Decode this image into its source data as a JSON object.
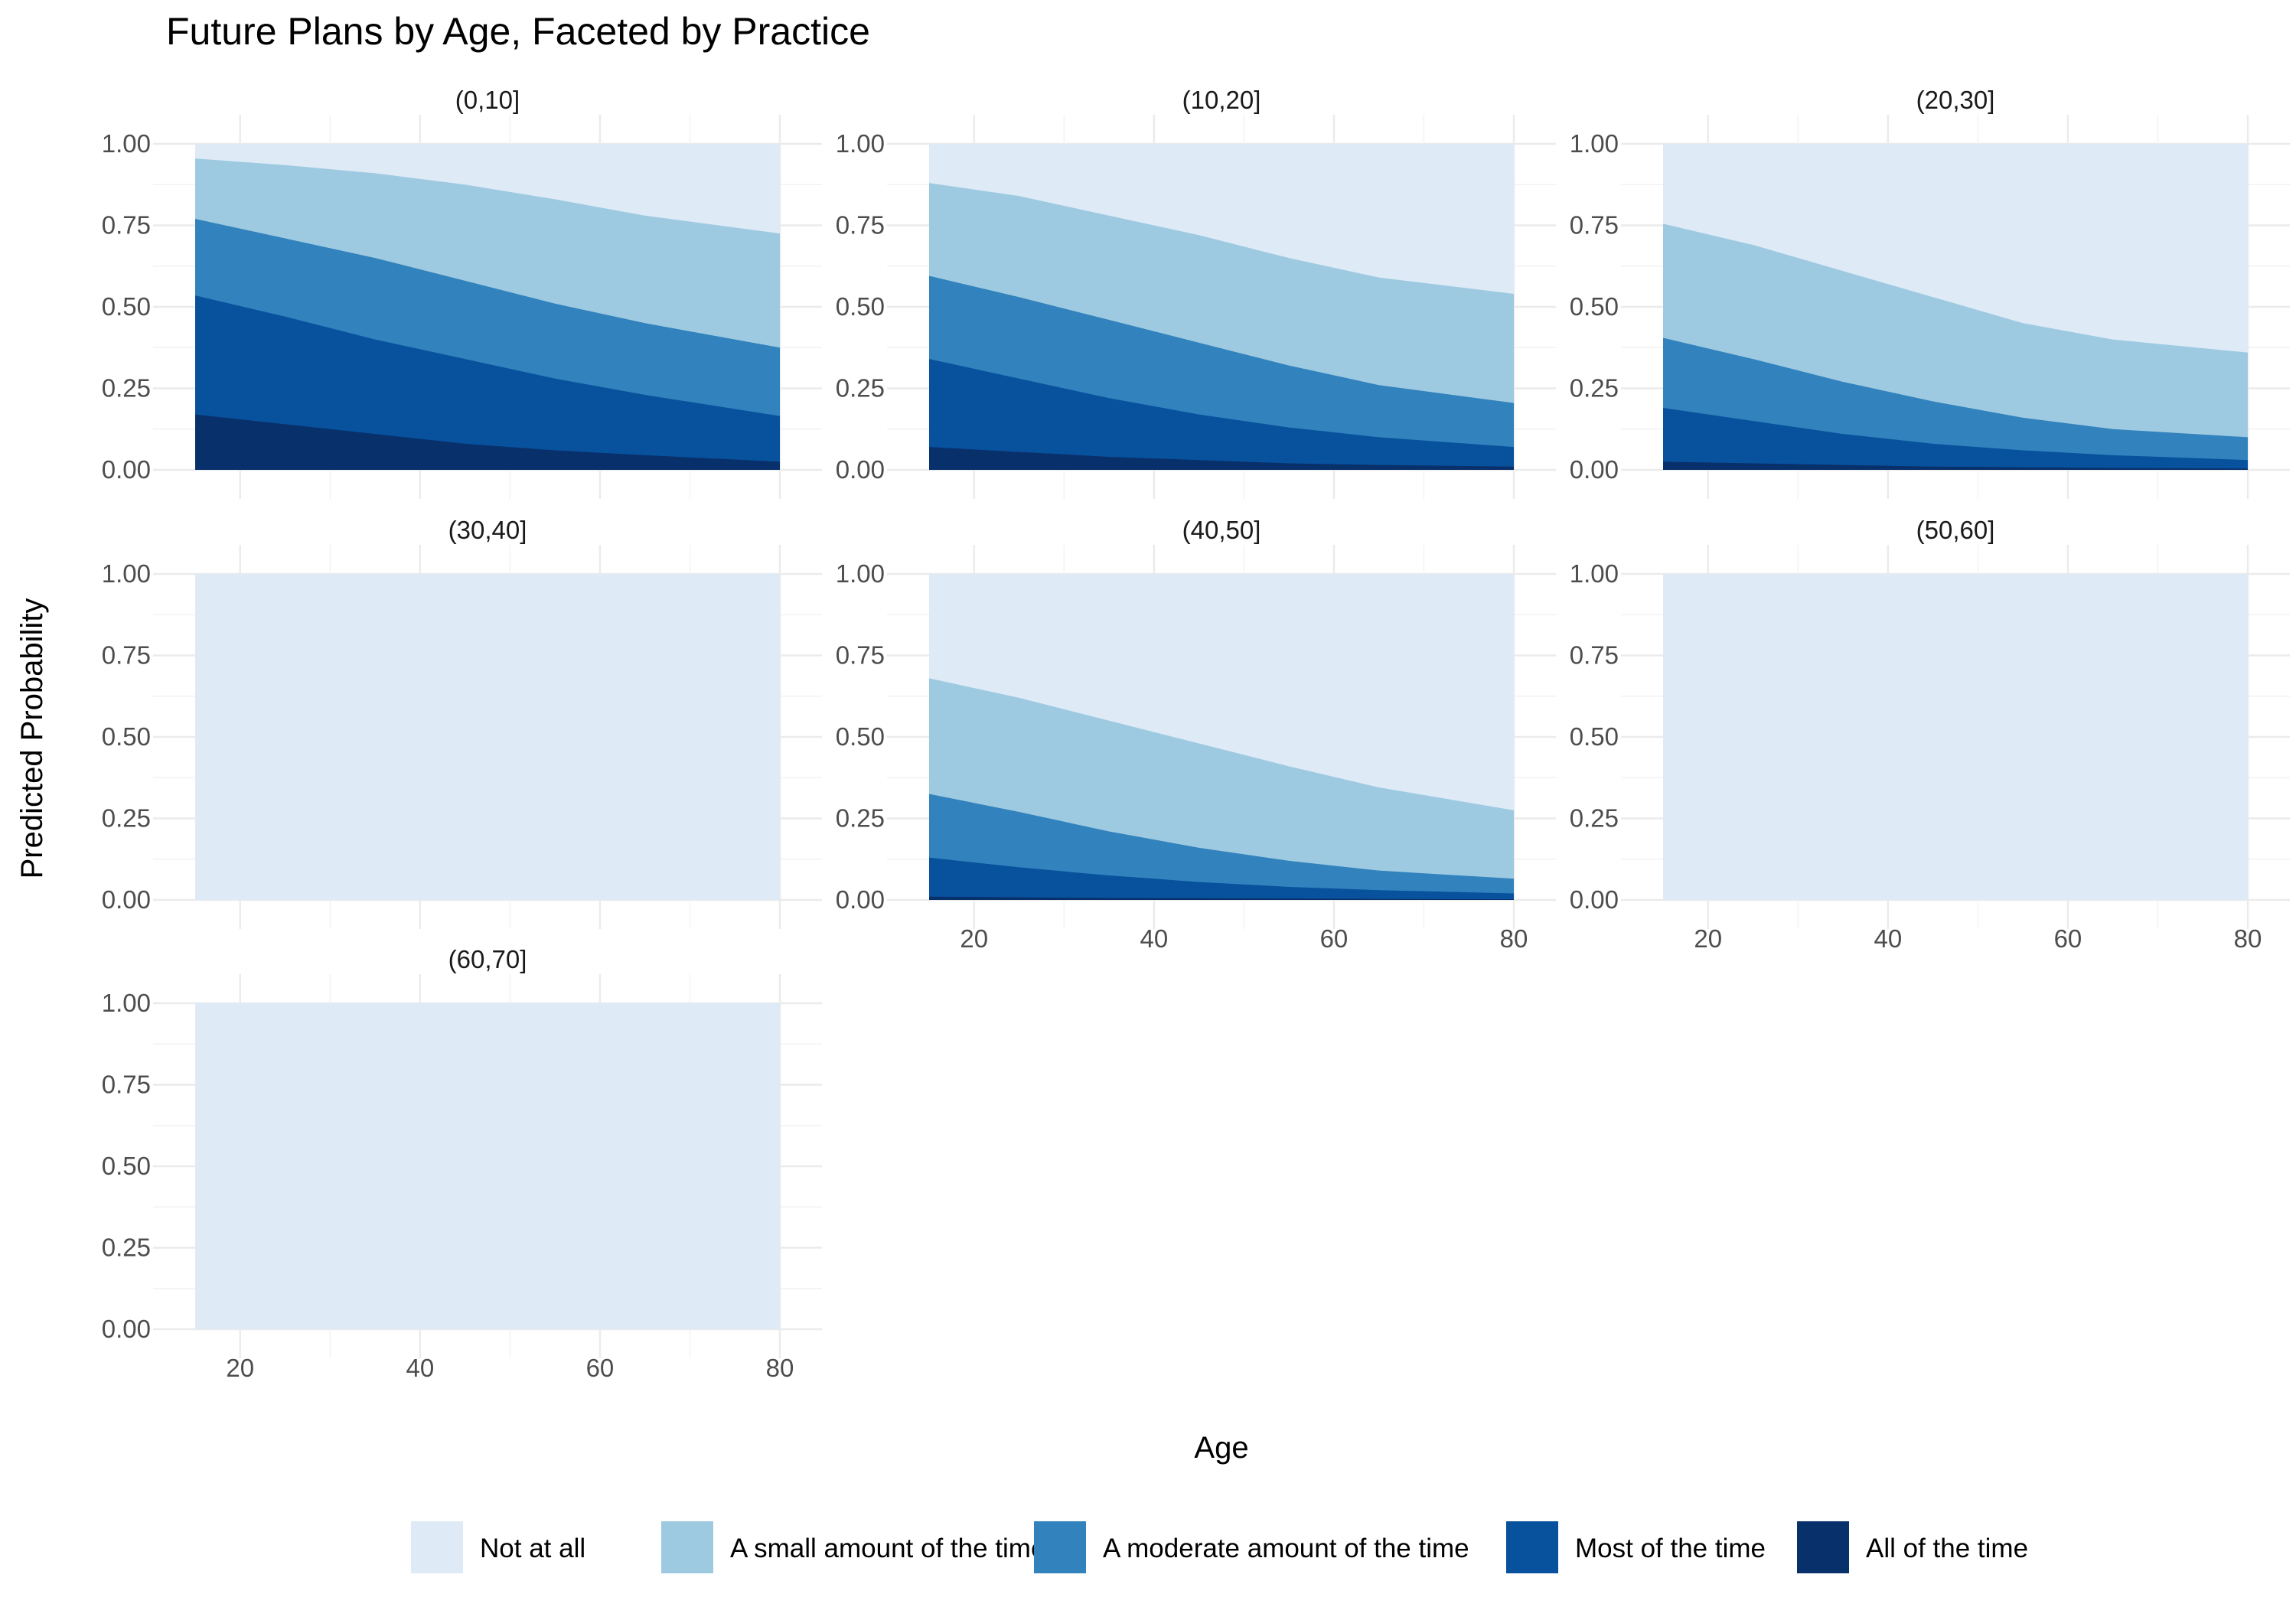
{
  "chart_data": {
    "type": "area",
    "title": "Future Plans by Age, Faceted by Practice",
    "xlabel": "Age",
    "ylabel": "Predicted Probability",
    "xlim": [
      15,
      80
    ],
    "ylim": [
      0,
      1
    ],
    "x_ticks": [
      "20",
      "40",
      "60",
      "80"
    ],
    "y_ticks": [
      "0.00",
      "0.25",
      "0.50",
      "0.75",
      "1.00"
    ],
    "x": [
      15,
      25,
      35,
      45,
      55,
      65,
      80
    ],
    "grid": true,
    "legend_position": "bottom",
    "legend": [
      {
        "name": "Not at all",
        "color": "#deebf7"
      },
      {
        "name": "A small amount of the time",
        "color": "#9ecae1"
      },
      {
        "name": "A moderate amount of the time",
        "color": "#3182bd"
      },
      {
        "name": "Most of the time",
        "color": "#08519c"
      },
      {
        "name": "All of the time",
        "color": "#08306b"
      }
    ],
    "series_note": "cumulative upper boundaries per facet (All of the time, Most of the time, A moderate amount of the time, A small amount of the time); Not at all fills to 1.00",
    "facets": [
      {
        "label": "(0,10]",
        "cumulative": [
          [
            0.17,
            0.14,
            0.11,
            0.08,
            0.06,
            0.045,
            0.025
          ],
          [
            0.535,
            0.47,
            0.4,
            0.34,
            0.28,
            0.23,
            0.165
          ],
          [
            0.77,
            0.71,
            0.65,
            0.58,
            0.51,
            0.45,
            0.375
          ],
          [
            0.955,
            0.935,
            0.91,
            0.875,
            0.83,
            0.78,
            0.725
          ]
        ]
      },
      {
        "label": "(10,20]",
        "cumulative": [
          [
            0.07,
            0.055,
            0.04,
            0.03,
            0.02,
            0.015,
            0.01
          ],
          [
            0.34,
            0.28,
            0.22,
            0.17,
            0.13,
            0.1,
            0.07
          ],
          [
            0.595,
            0.53,
            0.46,
            0.39,
            0.32,
            0.26,
            0.205
          ],
          [
            0.88,
            0.84,
            0.78,
            0.72,
            0.65,
            0.59,
            0.54
          ]
        ]
      },
      {
        "label": "(20,30]",
        "cumulative": [
          [
            0.025,
            0.02,
            0.015,
            0.01,
            0.008,
            0.006,
            0.004
          ],
          [
            0.19,
            0.15,
            0.11,
            0.08,
            0.06,
            0.045,
            0.03
          ],
          [
            0.405,
            0.34,
            0.27,
            0.21,
            0.16,
            0.125,
            0.1
          ],
          [
            0.755,
            0.69,
            0.61,
            0.53,
            0.45,
            0.4,
            0.36
          ]
        ]
      },
      {
        "label": "(30,40]",
        "cumulative": [
          [
            0,
            0,
            0,
            0,
            0,
            0,
            0
          ],
          [
            0,
            0,
            0,
            0,
            0,
            0,
            0
          ],
          [
            0,
            0,
            0,
            0,
            0,
            0,
            0
          ],
          [
            0,
            0,
            0,
            0,
            0,
            0,
            0
          ]
        ]
      },
      {
        "label": "(40,50]",
        "cumulative": [
          [
            0.01,
            0.008,
            0.006,
            0.005,
            0.004,
            0.003,
            0.002
          ],
          [
            0.13,
            0.1,
            0.075,
            0.055,
            0.04,
            0.03,
            0.02
          ],
          [
            0.325,
            0.27,
            0.21,
            0.16,
            0.12,
            0.09,
            0.065
          ],
          [
            0.68,
            0.62,
            0.55,
            0.48,
            0.41,
            0.345,
            0.275
          ]
        ]
      },
      {
        "label": "(50,60]",
        "cumulative": [
          [
            0,
            0,
            0,
            0,
            0,
            0,
            0
          ],
          [
            0,
            0,
            0,
            0,
            0,
            0,
            0
          ],
          [
            0,
            0,
            0,
            0,
            0,
            0,
            0
          ],
          [
            0,
            0,
            0,
            0,
            0,
            0,
            0
          ]
        ]
      },
      {
        "label": "(60,70]",
        "cumulative": [
          [
            0,
            0,
            0,
            0,
            0,
            0,
            0
          ],
          [
            0,
            0,
            0,
            0,
            0,
            0,
            0
          ],
          [
            0,
            0,
            0,
            0,
            0,
            0,
            0
          ],
          [
            0,
            0,
            0,
            0,
            0,
            0,
            0
          ]
        ]
      }
    ]
  }
}
